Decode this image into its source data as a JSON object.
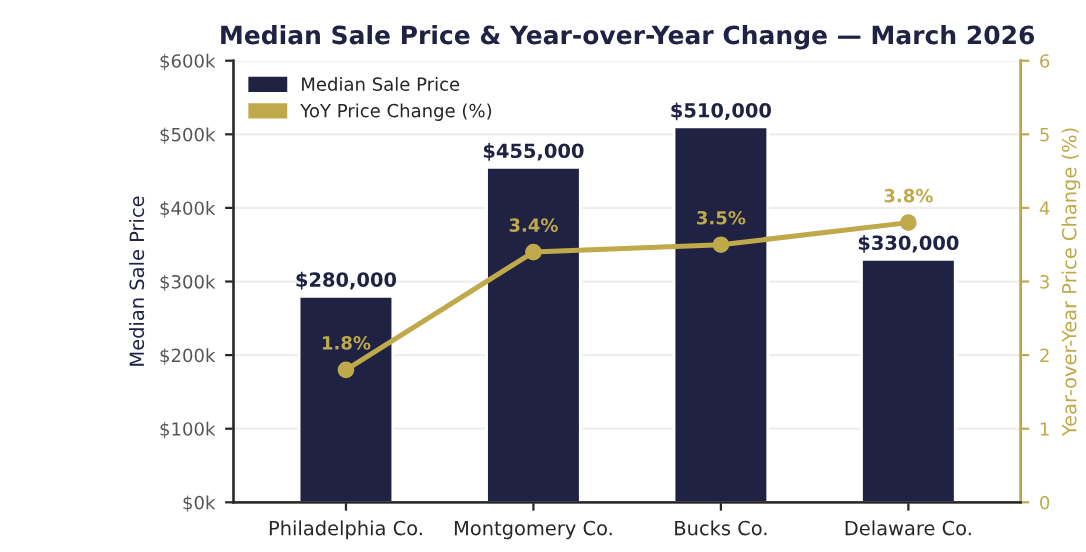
{
  "chart_data": {
    "type": "bar",
    "title": "Median Sale Price & Year-over-Year Change — March 2026",
    "categories": [
      "Philadelphia Co.",
      "Montgomery Co.",
      "Bucks Co.",
      "Delaware Co."
    ],
    "series": [
      {
        "name": "Median Sale Price",
        "color": "#1f2243",
        "values": [
          280000,
          455000,
          510000,
          330000
        ],
        "value_labels": [
          "$280,000",
          "$455,000",
          "$510,000",
          "$330,000"
        ]
      },
      {
        "name": "YoY Price Change (%)",
        "type": "line",
        "axis": "y2",
        "color": "#bfa94a",
        "values": [
          1.8,
          3.4,
          3.5,
          3.8
        ],
        "value_labels": [
          "1.8%",
          "3.4%",
          "3.5%",
          "3.8%"
        ]
      }
    ],
    "ylabel": "Median Sale Price",
    "y2label": "Year-over-Year Price Change (%)",
    "ylim": [
      0,
      600000
    ],
    "yticks": [
      {
        "value": 0,
        "label": "$0k"
      },
      {
        "value": 100000,
        "label": "$100k"
      },
      {
        "value": 200000,
        "label": "$200k"
      },
      {
        "value": 300000,
        "label": "$300k"
      },
      {
        "value": 400000,
        "label": "$400k"
      },
      {
        "value": 500000,
        "label": "$500k"
      },
      {
        "value": 600000,
        "label": "$600k"
      }
    ],
    "y2lim": [
      0,
      6
    ],
    "y2ticks": [
      0,
      1,
      2,
      3,
      4,
      5,
      6
    ],
    "grid": "y",
    "legend": "top left",
    "marker": "circle"
  }
}
